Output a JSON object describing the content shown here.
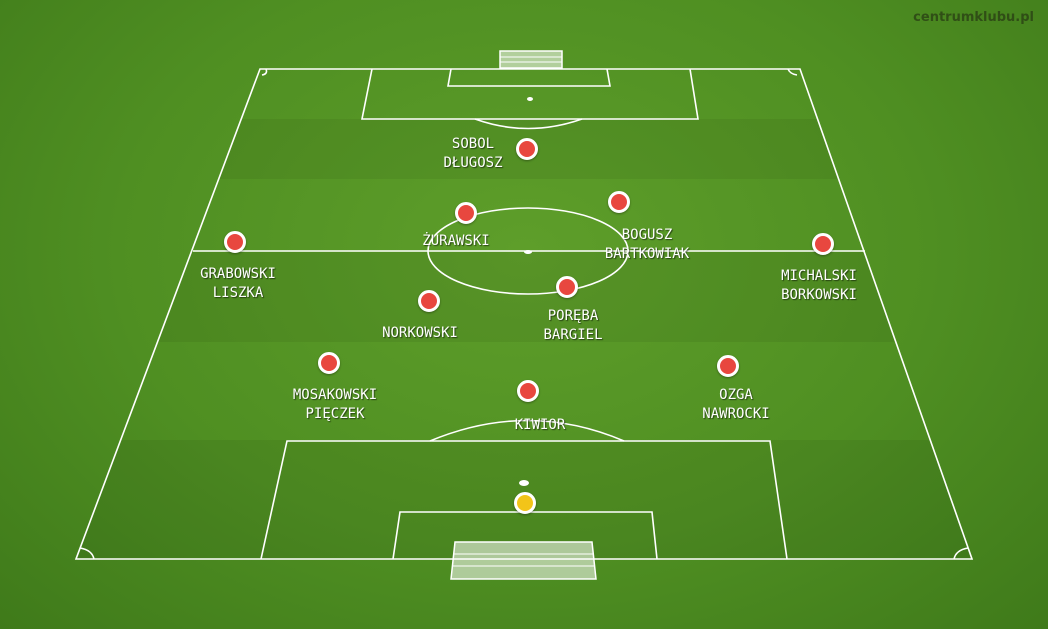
{
  "watermark": "centrumklubu.pl",
  "colors": {
    "outfield": "#e8473f",
    "goalkeeper": "#f2c419",
    "lines": "#ffffff"
  },
  "players": [
    {
      "id": "p1",
      "role": "outfield",
      "names": [
        "SOBOL",
        "DŁUGOSZ"
      ]
    },
    {
      "id": "p2",
      "role": "outfield",
      "names": [
        "ŻURAWSKI"
      ]
    },
    {
      "id": "p3",
      "role": "outfield",
      "names": [
        "BOGUSZ",
        "BARTKOWIAK"
      ]
    },
    {
      "id": "p4",
      "role": "outfield",
      "names": [
        "GRABOWSKI",
        "LISZKA"
      ]
    },
    {
      "id": "p5",
      "role": "outfield",
      "names": [
        "MICHALSKI",
        "BORKOWSKI"
      ]
    },
    {
      "id": "p6",
      "role": "outfield",
      "names": [
        "NORKOWSKI"
      ]
    },
    {
      "id": "p7",
      "role": "outfield",
      "names": [
        "PORĘBA",
        "BARGIEL"
      ]
    },
    {
      "id": "p8",
      "role": "outfield",
      "names": [
        "MOSAKOWSKI",
        "PIĘCZEK"
      ]
    },
    {
      "id": "p9",
      "role": "outfield",
      "names": [
        "KIWIOR"
      ]
    },
    {
      "id": "p10",
      "role": "outfield",
      "names": [
        "OZGA",
        "NAWROCKI"
      ]
    },
    {
      "id": "p11",
      "role": "goalkeeper",
      "names": []
    }
  ]
}
